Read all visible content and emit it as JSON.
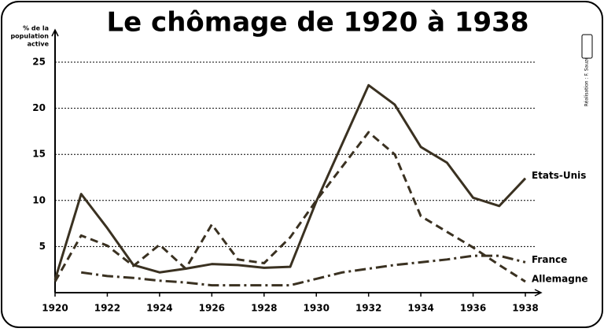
{
  "chart_data": {
    "type": "line",
    "title": "Le chômage de 1920 à 1938",
    "y_label": [
      "% de la",
      "population",
      "active"
    ],
    "credit": "Réalisation : F. Sauzeau",
    "x": [
      1920,
      1921,
      1922,
      1923,
      1924,
      1925,
      1926,
      1927,
      1928,
      1929,
      1930,
      1931,
      1932,
      1933,
      1934,
      1935,
      1936,
      1937,
      1938
    ],
    "xlim": [
      1920,
      1938
    ],
    "xticks": [
      1920,
      1922,
      1924,
      1926,
      1928,
      1930,
      1932,
      1934,
      1936,
      1938
    ],
    "ylim": [
      0,
      28.5
    ],
    "yticks": [
      5,
      10,
      15,
      20,
      25
    ],
    "grid": true,
    "series": [
      {
        "name": "Etats-Unis",
        "color": "#3a3121",
        "line_style": "solid",
        "values": [
          1.4,
          10.7,
          7.0,
          3.0,
          2.2,
          2.6,
          3.1,
          3.0,
          2.7,
          2.8,
          9.9,
          16.2,
          22.5,
          20.4,
          15.8,
          14.1,
          10.3,
          9.4,
          12.4
        ]
      },
      {
        "name": "France",
        "color": "#3a3121",
        "line_style": "dashdot",
        "values": [
          null,
          2.2,
          1.8,
          1.6,
          1.3,
          1.1,
          0.8,
          0.8,
          0.8,
          0.8,
          1.5,
          2.2,
          2.6,
          3.0,
          3.3,
          3.6,
          4.0,
          4.0,
          3.3
        ]
      },
      {
        "name": "Allemagne",
        "color": "#3a3121",
        "line_style": "dashed",
        "values": [
          1.2,
          6.2,
          5.1,
          2.9,
          5.2,
          2.6,
          7.4,
          3.6,
          3.2,
          6.0,
          10.0,
          13.7,
          17.4,
          15.0,
          8.3,
          6.6,
          4.9,
          3.0,
          1.2
        ]
      }
    ]
  }
}
